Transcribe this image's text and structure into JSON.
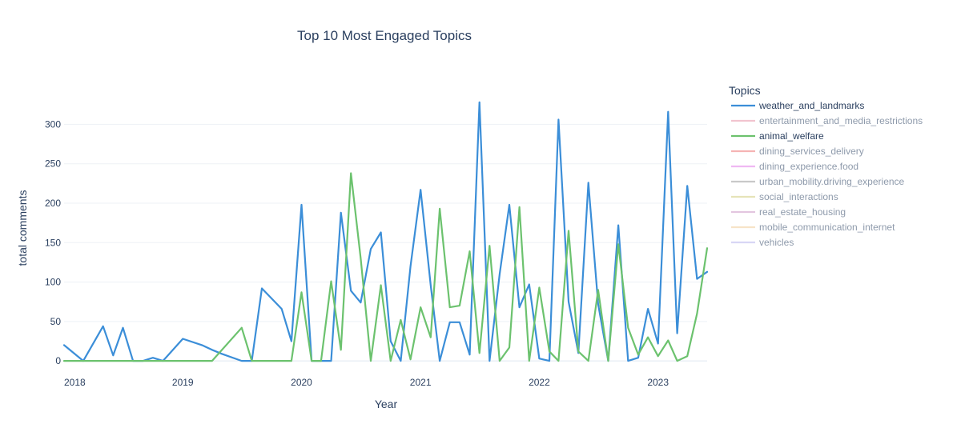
{
  "chart_data": {
    "type": "line",
    "title": "Top 10 Most Engaged Topics",
    "xlabel": "Year",
    "ylabel": "total comments",
    "xlim": [
      "2018-01-01",
      "2023-06-01"
    ],
    "ylim": [
      -10,
      340
    ],
    "x_ticks": [
      "2018",
      "2019",
      "2020",
      "2021",
      "2022",
      "2023"
    ],
    "y_ticks": [
      0,
      50,
      100,
      150,
      200,
      250,
      300
    ],
    "grid": true,
    "legend": {
      "title": "Topics",
      "placement": "right"
    },
    "series": [
      {
        "name": "weather_and_landmarks",
        "color": "#3b8ed8",
        "visible": true,
        "points": [
          [
            "2018-01-01",
            20
          ],
          [
            "2018-03-01",
            0
          ],
          [
            "2018-05-01",
            44
          ],
          [
            "2018-06-01",
            7
          ],
          [
            "2018-07-01",
            42
          ],
          [
            "2018-08-01",
            0
          ],
          [
            "2018-09-01",
            0
          ],
          [
            "2018-10-01",
            4
          ],
          [
            "2018-11-01",
            0
          ],
          [
            "2019-01-01",
            28
          ],
          [
            "2019-03-01",
            20
          ],
          [
            "2019-04-01",
            14
          ],
          [
            "2019-05-01",
            9
          ],
          [
            "2019-07-01",
            0
          ],
          [
            "2019-08-01",
            0
          ],
          [
            "2019-09-01",
            92
          ],
          [
            "2019-11-01",
            66
          ],
          [
            "2019-12-01",
            25
          ],
          [
            "2020-01-01",
            198
          ],
          [
            "2020-02-01",
            0
          ],
          [
            "2020-03-01",
            0
          ],
          [
            "2020-04-01",
            0
          ],
          [
            "2020-05-01",
            188
          ],
          [
            "2020-06-01",
            89
          ],
          [
            "2020-07-01",
            74
          ],
          [
            "2020-08-01",
            142
          ],
          [
            "2020-09-01",
            163
          ],
          [
            "2020-10-01",
            25
          ],
          [
            "2020-11-01",
            0
          ],
          [
            "2020-12-01",
            120
          ],
          [
            "2021-01-01",
            217
          ],
          [
            "2021-02-01",
            96
          ],
          [
            "2021-03-01",
            0
          ],
          [
            "2021-04-01",
            49
          ],
          [
            "2021-05-01",
            49
          ],
          [
            "2021-06-01",
            8
          ],
          [
            "2021-07-01",
            328
          ],
          [
            "2021-08-01",
            0
          ],
          [
            "2021-09-01",
            110
          ],
          [
            "2021-10-01",
            198
          ],
          [
            "2021-11-01",
            68
          ],
          [
            "2021-12-01",
            97
          ],
          [
            "2022-01-01",
            3
          ],
          [
            "2022-02-01",
            0
          ],
          [
            "2022-03-01",
            306
          ],
          [
            "2022-04-01",
            75
          ],
          [
            "2022-05-01",
            10
          ],
          [
            "2022-06-01",
            226
          ],
          [
            "2022-07-01",
            72
          ],
          [
            "2022-08-01",
            0
          ],
          [
            "2022-09-01",
            172
          ],
          [
            "2022-10-01",
            0
          ],
          [
            "2022-11-01",
            4
          ],
          [
            "2022-12-01",
            66
          ],
          [
            "2023-01-01",
            22
          ],
          [
            "2023-02-01",
            316
          ],
          [
            "2023-03-01",
            35
          ],
          [
            "2023-04-01",
            222
          ],
          [
            "2023-05-01",
            104
          ],
          [
            "2023-06-01",
            113
          ]
        ]
      },
      {
        "name": "entertainment_and_media_restrictions",
        "color": "#f2c4cf",
        "visible": false,
        "points": []
      },
      {
        "name": "animal_welfare",
        "color": "#6cc26e",
        "visible": true,
        "points": [
          [
            "2018-01-01",
            0
          ],
          [
            "2018-05-01",
            0
          ],
          [
            "2018-09-01",
            0
          ],
          [
            "2019-01-01",
            0
          ],
          [
            "2019-04-01",
            0
          ],
          [
            "2019-07-01",
            42
          ],
          [
            "2019-08-01",
            0
          ],
          [
            "2019-12-01",
            0
          ],
          [
            "2020-01-01",
            87
          ],
          [
            "2020-02-01",
            0
          ],
          [
            "2020-03-01",
            0
          ],
          [
            "2020-04-01",
            101
          ],
          [
            "2020-05-01",
            14
          ],
          [
            "2020-06-01",
            238
          ],
          [
            "2020-07-01",
            130
          ],
          [
            "2020-08-01",
            0
          ],
          [
            "2020-09-01",
            96
          ],
          [
            "2020-10-01",
            0
          ],
          [
            "2020-11-01",
            52
          ],
          [
            "2020-12-01",
            2
          ],
          [
            "2021-01-01",
            68
          ],
          [
            "2021-02-01",
            30
          ],
          [
            "2021-03-01",
            193
          ],
          [
            "2021-04-01",
            68
          ],
          [
            "2021-05-01",
            70
          ],
          [
            "2021-06-01",
            139
          ],
          [
            "2021-07-01",
            10
          ],
          [
            "2021-08-01",
            146
          ],
          [
            "2021-09-01",
            0
          ],
          [
            "2021-10-01",
            17
          ],
          [
            "2021-11-01",
            195
          ],
          [
            "2021-12-01",
            0
          ],
          [
            "2022-01-01",
            93
          ],
          [
            "2022-02-01",
            12
          ],
          [
            "2022-03-01",
            0
          ],
          [
            "2022-04-01",
            165
          ],
          [
            "2022-05-01",
            12
          ],
          [
            "2022-06-01",
            0
          ],
          [
            "2022-07-01",
            90
          ],
          [
            "2022-08-01",
            0
          ],
          [
            "2022-09-01",
            148
          ],
          [
            "2022-10-01",
            42
          ],
          [
            "2022-11-01",
            8
          ],
          [
            "2022-12-01",
            30
          ],
          [
            "2023-01-01",
            6
          ],
          [
            "2023-02-01",
            26
          ],
          [
            "2023-03-01",
            0
          ],
          [
            "2023-04-01",
            6
          ],
          [
            "2023-05-01",
            60
          ],
          [
            "2023-06-01",
            143
          ]
        ]
      },
      {
        "name": "dining_services_delivery",
        "color": "#f5b4b4",
        "visible": false,
        "points": []
      },
      {
        "name": "dining_experience.food",
        "color": "#f0b8f2",
        "visible": false,
        "points": []
      },
      {
        "name": "urban_mobility.driving_experience",
        "color": "#c9c9c9",
        "visible": false,
        "points": []
      },
      {
        "name": "social_interactions",
        "color": "#e6e3b8",
        "visible": false,
        "points": []
      },
      {
        "name": "real_estate_housing",
        "color": "#e3c6e0",
        "visible": false,
        "points": []
      },
      {
        "name": "mobile_communication_internet",
        "color": "#f7e3c8",
        "visible": false,
        "points": []
      },
      {
        "name": "vehicles",
        "color": "#d8d6f5",
        "visible": false,
        "points": []
      }
    ]
  }
}
